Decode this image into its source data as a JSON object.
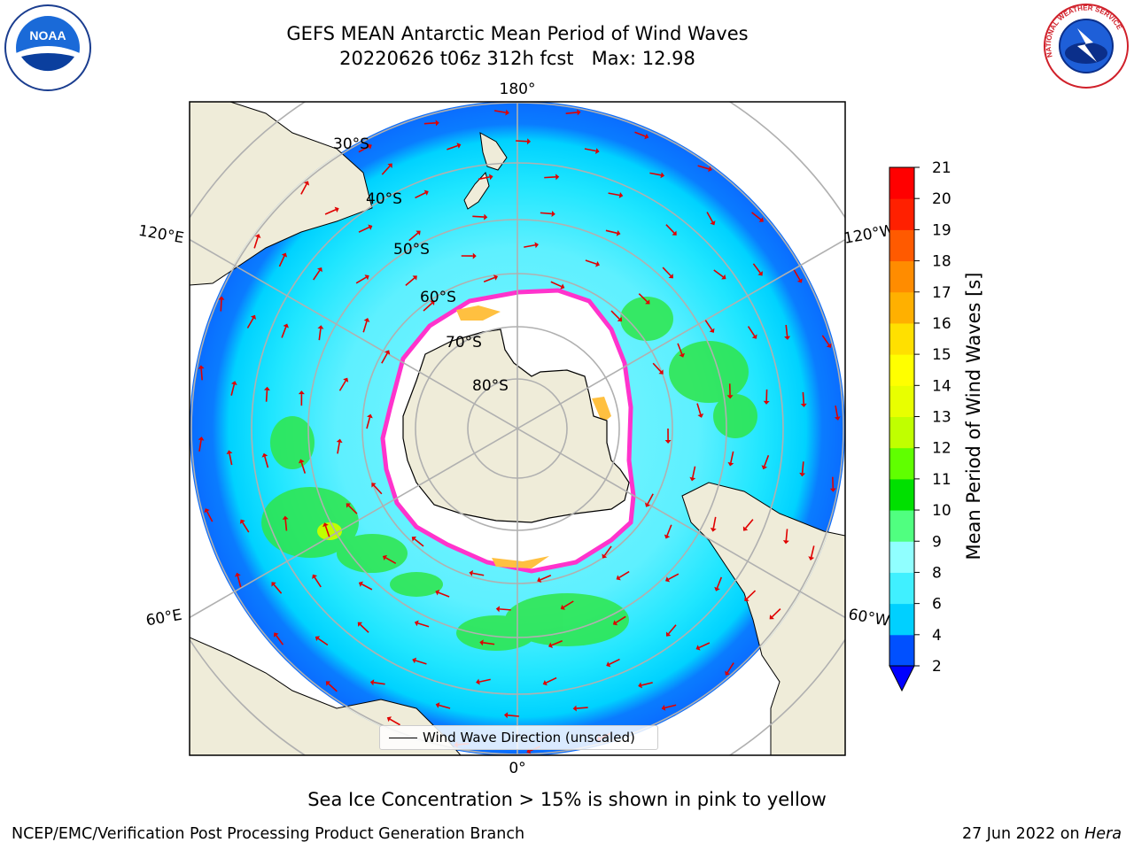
{
  "title": "GEFS MEAN Antarctic Mean Period of Wind Waves",
  "subtitle": "20220626 t06z 312h fcst   Max: 12.98",
  "footer_note": "Sea Ice Concentration > 15% is shown in pink to yellow",
  "credit": "NCEP/EMC/Verification Post Processing Product Generation Branch",
  "date_stamp": "27 Jun 2022 on ",
  "host": "Hera",
  "logos": {
    "left": "NOAA",
    "right": "NATIONAL WEATHER SERVICE"
  },
  "legend_label": "Wind Wave Direction (unscaled)",
  "colorbar": {
    "label": "Mean Period of Wind Waves [s]",
    "ticks": [
      "2",
      "4",
      "6",
      "8",
      "9",
      "10",
      "11",
      "12",
      "13",
      "14",
      "15",
      "16",
      "17",
      "18",
      "19",
      "20",
      "21"
    ],
    "colors": [
      "#0050ff",
      "#00d0ff",
      "#40f0ff",
      "#90ffff",
      "#50ff80",
      "#00e000",
      "#60ff00",
      "#c0ff00",
      "#e8ff00",
      "#ffff00",
      "#ffe000",
      "#ffb000",
      "#ff8c00",
      "#ff5a00",
      "#ff2000",
      "#ff0000"
    ],
    "under_color": "#0000ff"
  },
  "map": {
    "lon_labels": {
      "top": "180°",
      "bottom": "0°",
      "left_upper": "120°E",
      "right_upper": "120°W",
      "left_lower": "60°E",
      "right_lower": "60°W"
    },
    "lat_labels": [
      "30°S",
      "40°S",
      "50°S",
      "60°S",
      "70°S",
      "80°S"
    ],
    "colors": {
      "land": "#efecd9",
      "ocean_deep": "#0a7cff",
      "ocean": "#00e0ff",
      "ocean_light": "#7ff6ff",
      "green": "#2ee64a",
      "ice_edge": "#ff33cc",
      "arrow": "#e00000"
    }
  }
}
